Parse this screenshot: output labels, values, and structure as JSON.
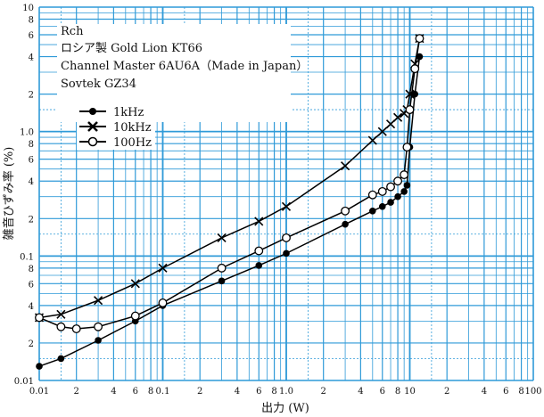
{
  "chart_data": {
    "type": "line",
    "scale": "log-log",
    "xlabel": "出力 (W)",
    "ylabel": "雑音ひずみ率 (%)",
    "xlim": [
      0.01,
      100
    ],
    "ylim": [
      0.01,
      10
    ],
    "x_tick_labels": [
      {
        "v": 0.01,
        "t": "0.01"
      },
      {
        "v": 0.02,
        "t": "2"
      },
      {
        "v": 0.04,
        "t": "4"
      },
      {
        "v": 0.06,
        "t": "6"
      },
      {
        "v": 0.08,
        "t": "8"
      },
      {
        "v": 0.1,
        "t": "0.1"
      },
      {
        "v": 0.2,
        "t": "2"
      },
      {
        "v": 0.4,
        "t": "4"
      },
      {
        "v": 0.6,
        "t": "6"
      },
      {
        "v": 0.8,
        "t": "8"
      },
      {
        "v": 1,
        "t": "1.0"
      },
      {
        "v": 2,
        "t": "2"
      },
      {
        "v": 4,
        "t": "4"
      },
      {
        "v": 6,
        "t": "6"
      },
      {
        "v": 8,
        "t": "8"
      },
      {
        "v": 10,
        "t": "10"
      },
      {
        "v": 20,
        "t": "2"
      },
      {
        "v": 40,
        "t": "4"
      },
      {
        "v": 60,
        "t": "6"
      },
      {
        "v": 80,
        "t": "8"
      },
      {
        "v": 100,
        "t": "100"
      }
    ],
    "y_tick_labels": [
      {
        "v": 0.01,
        "t": "0.01"
      },
      {
        "v": 0.02,
        "t": "2"
      },
      {
        "v": 0.04,
        "t": "4"
      },
      {
        "v": 0.06,
        "t": "6"
      },
      {
        "v": 0.08,
        "t": "8"
      },
      {
        "v": 0.1,
        "t": "0.1"
      },
      {
        "v": 0.2,
        "t": "2"
      },
      {
        "v": 0.4,
        "t": "4"
      },
      {
        "v": 0.6,
        "t": "6"
      },
      {
        "v": 0.8,
        "t": "8"
      },
      {
        "v": 1,
        "t": "1.0"
      },
      {
        "v": 2,
        "t": "2"
      },
      {
        "v": 4,
        "t": "4"
      },
      {
        "v": 6,
        "t": "6"
      },
      {
        "v": 8,
        "t": "8"
      },
      {
        "v": 10,
        "t": "10"
      }
    ],
    "annotations": [
      "Rch",
      "ロシア製 Gold Lion KT66",
      "Channel Master 6AU6A（Made in Japan）",
      "Sovtek GZ34"
    ],
    "legend_position": "upper-left",
    "grid": true,
    "series": [
      {
        "name": "1kHz",
        "marker": "filled-circle",
        "x": [
          0.01,
          0.015,
          0.03,
          0.06,
          0.1,
          0.3,
          0.6,
          1,
          3,
          5,
          6,
          7,
          8,
          9,
          9.5,
          10,
          11,
          12
        ],
        "y": [
          0.013,
          0.015,
          0.021,
          0.03,
          0.04,
          0.063,
          0.084,
          0.105,
          0.18,
          0.23,
          0.25,
          0.27,
          0.3,
          0.33,
          0.37,
          0.75,
          2.0,
          4.0
        ]
      },
      {
        "name": "10kHz",
        "marker": "x",
        "x": [
          0.01,
          0.015,
          0.03,
          0.06,
          0.1,
          0.3,
          0.6,
          1,
          3,
          5,
          6,
          7,
          8,
          9,
          9.5,
          10,
          11,
          12
        ],
        "y": [
          0.032,
          0.034,
          0.044,
          0.06,
          0.08,
          0.14,
          0.19,
          0.25,
          0.53,
          0.85,
          1.0,
          1.15,
          1.3,
          1.4,
          1.5,
          2.0,
          3.5,
          5.6
        ]
      },
      {
        "name": "100Hz",
        "marker": "open-circle",
        "x": [
          0.01,
          0.015,
          0.02,
          0.03,
          0.06,
          0.1,
          0.3,
          0.6,
          1,
          3,
          5,
          6,
          7,
          8,
          9,
          9.5,
          10,
          11,
          12
        ],
        "y": [
          0.032,
          0.027,
          0.026,
          0.027,
          0.033,
          0.042,
          0.08,
          0.11,
          0.14,
          0.23,
          0.31,
          0.33,
          0.36,
          0.4,
          0.45,
          0.75,
          1.5,
          3.2,
          5.6
        ]
      }
    ]
  }
}
